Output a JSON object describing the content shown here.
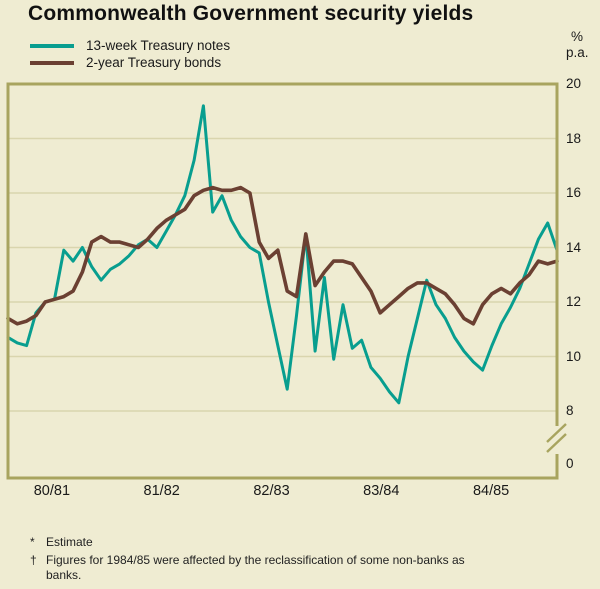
{
  "title": "Commonwealth Government security yields",
  "legend": [
    {
      "label": "13-week Treasury notes"
    },
    {
      "label": "2-year Treasury bonds"
    }
  ],
  "axis": {
    "unit_top": "%",
    "unit_bottom": "p.a."
  },
  "footnotes": [
    {
      "symbol": "*",
      "text": "Estimate"
    },
    {
      "symbol": "†",
      "text": "Figures for 1984/85 were affected by the reclassification of some non-banks as banks."
    }
  ],
  "colors": {
    "background": "#efecd2",
    "frame": "#a8a45f",
    "grid": "#d9d5ae",
    "text": "#1a1a1a"
  },
  "chart_data": {
    "type": "line",
    "title": "Commonwealth Government security yields",
    "ylabel": "% p.a.",
    "ylim": [
      8,
      20
    ],
    "yticks": [
      20,
      18,
      16,
      14,
      12,
      10,
      8,
      0
    ],
    "axis_break_between": [
      0,
      8
    ],
    "grid": true,
    "legend_position": "top-left",
    "x_categories": [
      "80/81",
      "81/82",
      "82/83",
      "83/84",
      "84/85"
    ],
    "points_per_year": 12,
    "series": [
      {
        "name": "13-week Treasury notes",
        "color": "#089e8f",
        "values": [
          10.7,
          10.5,
          10.4,
          11.6,
          12.0,
          12.1,
          13.9,
          13.5,
          14.0,
          13.3,
          12.8,
          13.2,
          13.4,
          13.7,
          14.1,
          14.3,
          14.0,
          14.6,
          15.2,
          15.9,
          17.2,
          19.2,
          15.3,
          15.9,
          15.0,
          14.4,
          14.0,
          13.8,
          12.0,
          10.4,
          8.8,
          11.5,
          14.5,
          10.2,
          12.9,
          9.9,
          11.9,
          10.3,
          10.6,
          9.6,
          9.2,
          8.7,
          8.3,
          10.0,
          11.4,
          12.8,
          11.9,
          11.4,
          10.7,
          10.2,
          9.8,
          9.5,
          10.4,
          11.2,
          11.8,
          12.5,
          13.4,
          14.3,
          14.9,
          13.9
        ]
      },
      {
        "name": "2-year Treasury bonds",
        "color": "#6b4032",
        "values": [
          11.4,
          11.2,
          11.3,
          11.5,
          12.0,
          12.1,
          12.2,
          12.4,
          13.1,
          14.2,
          14.4,
          14.2,
          14.2,
          14.1,
          14.0,
          14.3,
          14.7,
          15.0,
          15.2,
          15.4,
          15.9,
          16.1,
          16.2,
          16.1,
          16.1,
          16.2,
          16.0,
          14.2,
          13.6,
          13.9,
          12.4,
          12.2,
          14.5,
          12.6,
          13.1,
          13.5,
          13.5,
          13.4,
          12.9,
          12.4,
          11.6,
          11.9,
          12.2,
          12.5,
          12.7,
          12.7,
          12.5,
          12.3,
          11.9,
          11.4,
          11.2,
          11.9,
          12.3,
          12.5,
          12.3,
          12.7,
          13.0,
          13.5,
          13.4,
          13.5
        ]
      }
    ]
  }
}
